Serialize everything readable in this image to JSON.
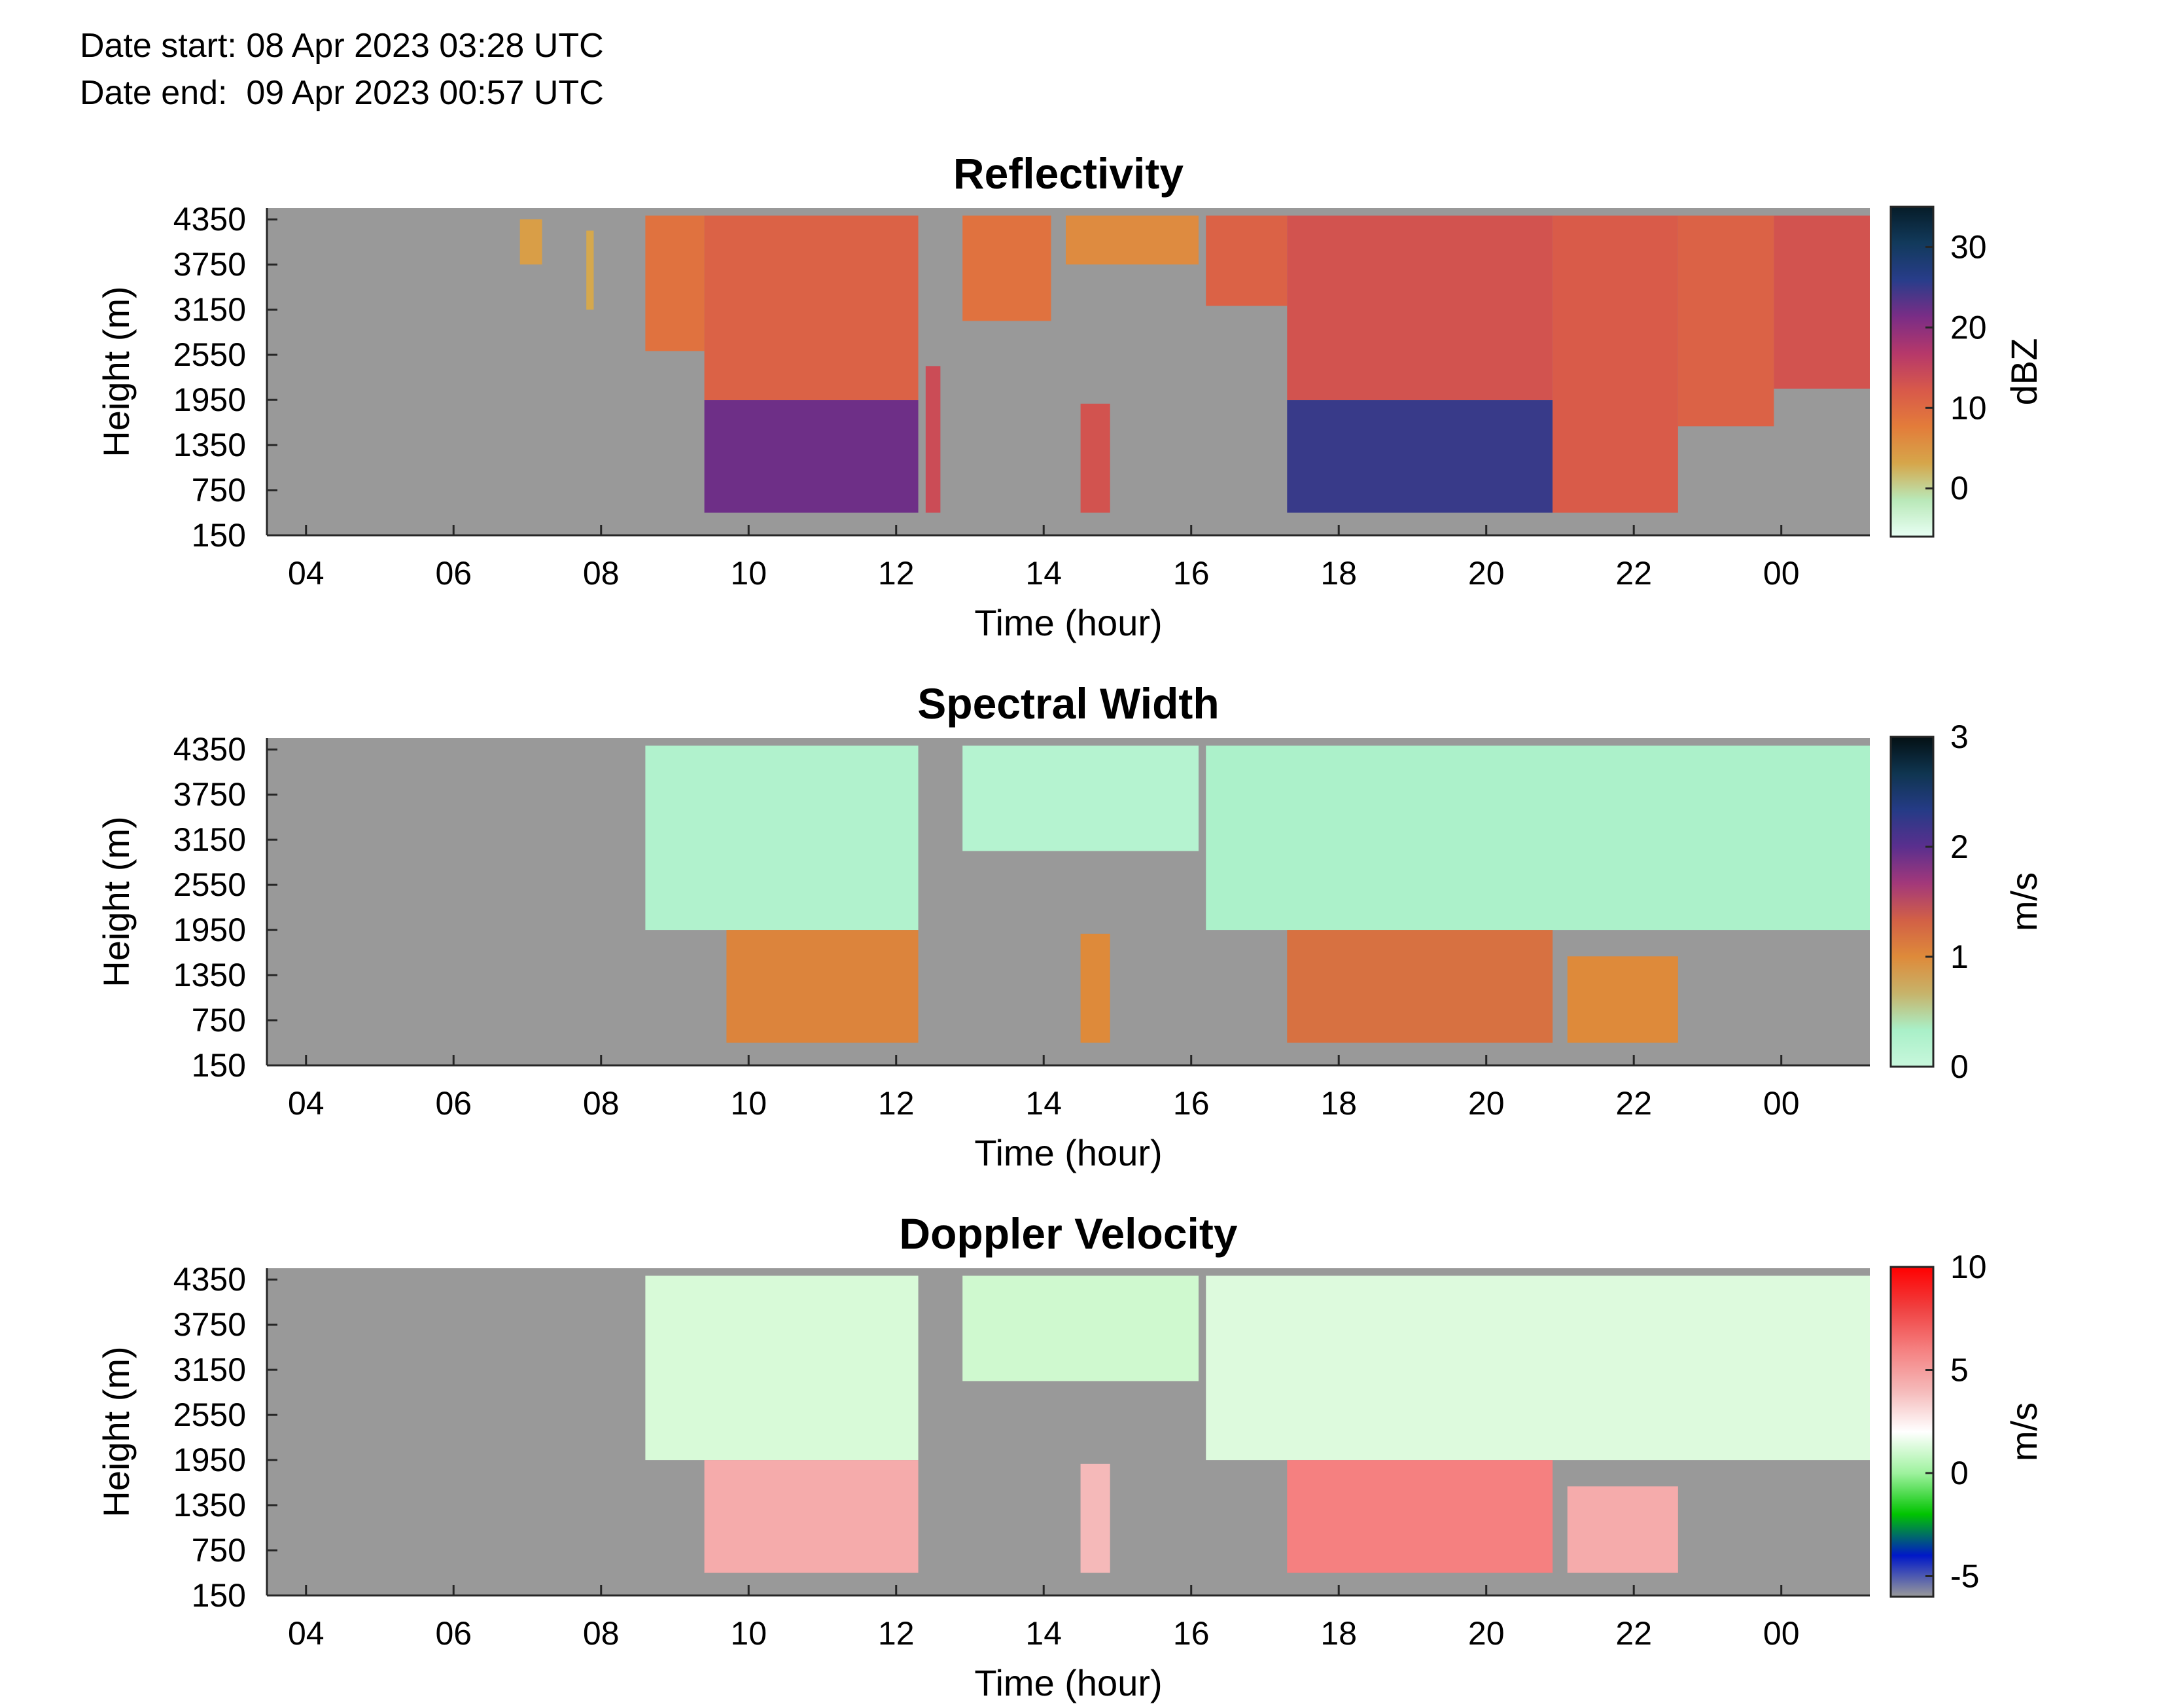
{
  "header": {
    "date_start": "Date start: 08 Apr 2023 03:28 UTC",
    "date_end": "Date end:  09 Apr 2023 00:57 UTC"
  },
  "colors": {
    "missing": "#999999",
    "axis": "#262626",
    "reflectivity_scale": [
      "#e8fff4",
      "#b9e8b8",
      "#d6a64a",
      "#e37c3a",
      "#d8594a",
      "#b6386a",
      "#7a2d86",
      "#283d8a",
      "#123a5c",
      "#061c28"
    ],
    "spectral_width_scale": [
      "#c8f7dc",
      "#a9f0c8",
      "#c7b36a",
      "#de8a3a",
      "#d26046",
      "#a3387a",
      "#5a2f8e",
      "#253b86",
      "#0f3550",
      "#041014"
    ],
    "doppler_scale": [
      "#9a9a9a",
      "#0018c8",
      "#00c400",
      "#9ef29e",
      "#ffffff",
      "#f5b9b9",
      "#f58080",
      "#f04040",
      "#ff0000"
    ]
  },
  "chart_data": [
    {
      "type": "heatmap",
      "title": "Reflectivity",
      "xlabel": "Time (hour)",
      "ylabel": "Height (m)",
      "x_ticks": [
        "04",
        "06",
        "08",
        "10",
        "12",
        "14",
        "16",
        "18",
        "20",
        "22",
        "00"
      ],
      "y_ticks": [
        "150",
        "750",
        "1350",
        "1950",
        "2550",
        "3150",
        "3750",
        "4350"
      ],
      "xlim_hours_since_0300": [
        0.47,
        22.2
      ],
      "ylim_m": [
        150,
        4500
      ],
      "colorbar": {
        "label": "dBZ",
        "ticks": [
          "0",
          "10",
          "20",
          "30"
        ],
        "range": [
          -6,
          35
        ]
      },
      "missing_value_color": "#999999",
      "echo_regions": [
        {
          "start_h": 3.9,
          "end_h": 4.2,
          "top_m": 4350,
          "bottom_m": 3750,
          "value": 4
        },
        {
          "start_h": 4.8,
          "end_h": 4.9,
          "top_m": 4200,
          "bottom_m": 3150,
          "value": 3
        },
        {
          "start_h": 5.6,
          "end_h": 6.4,
          "top_m": 4400,
          "bottom_m": 2600,
          "value": 9
        },
        {
          "start_h": 6.4,
          "end_h": 9.3,
          "top_m": 4400,
          "bottom_m": 1950,
          "value": 11
        },
        {
          "start_h": 6.4,
          "end_h": 9.3,
          "top_m": 1950,
          "bottom_m": 450,
          "value": 22
        },
        {
          "start_h": 9.4,
          "end_h": 9.6,
          "top_m": 2400,
          "bottom_m": 450,
          "value": 14
        },
        {
          "start_h": 9.9,
          "end_h": 11.1,
          "top_m": 4400,
          "bottom_m": 3000,
          "value": 9
        },
        {
          "start_h": 11.5,
          "end_h": 11.9,
          "top_m": 1900,
          "bottom_m": 450,
          "value": 13
        },
        {
          "start_h": 11.3,
          "end_h": 13.1,
          "top_m": 4400,
          "bottom_m": 3750,
          "value": 6
        },
        {
          "start_h": 13.2,
          "end_h": 14.3,
          "top_m": 4400,
          "bottom_m": 3200,
          "value": 11
        },
        {
          "start_h": 14.3,
          "end_h": 17.9,
          "top_m": 4400,
          "bottom_m": 1950,
          "value": 13
        },
        {
          "start_h": 14.3,
          "end_h": 17.9,
          "top_m": 1950,
          "bottom_m": 450,
          "value": 25
        },
        {
          "start_h": 17.9,
          "end_h": 19.6,
          "top_m": 4400,
          "bottom_m": 450,
          "value": 12
        },
        {
          "start_h": 19.6,
          "end_h": 20.9,
          "top_m": 4400,
          "bottom_m": 1600,
          "value": 11
        },
        {
          "start_h": 20.9,
          "end_h": 24.4,
          "top_m": 4400,
          "bottom_m": 2100,
          "value": 13
        }
      ]
    },
    {
      "type": "heatmap",
      "title": "Spectral Width",
      "xlabel": "Time (hour)",
      "ylabel": "Height (m)",
      "x_ticks": [
        "04",
        "06",
        "08",
        "10",
        "12",
        "14",
        "16",
        "18",
        "20",
        "22",
        "00"
      ],
      "y_ticks": [
        "150",
        "750",
        "1350",
        "1950",
        "2550",
        "3150",
        "3750",
        "4350"
      ],
      "xlim_hours_since_0300": [
        0.47,
        22.2
      ],
      "ylim_m": [
        150,
        4500
      ],
      "colorbar": {
        "label": "m/s",
        "ticks": [
          "0",
          "1",
          "2",
          "3"
        ],
        "range": [
          0,
          3
        ]
      },
      "missing_value_color": "#999999",
      "echo_regions": [
        {
          "start_h": 5.6,
          "end_h": 9.3,
          "top_m": 4400,
          "bottom_m": 1950,
          "value": 0.25
        },
        {
          "start_h": 6.7,
          "end_h": 9.3,
          "top_m": 1950,
          "bottom_m": 450,
          "value": 1.05
        },
        {
          "start_h": 9.9,
          "end_h": 13.1,
          "top_m": 4400,
          "bottom_m": 3000,
          "value": 0.2
        },
        {
          "start_h": 11.5,
          "end_h": 11.9,
          "top_m": 1900,
          "bottom_m": 450,
          "value": 1.0
        },
        {
          "start_h": 13.2,
          "end_h": 24.4,
          "top_m": 4400,
          "bottom_m": 1950,
          "value": 0.3
        },
        {
          "start_h": 14.3,
          "end_h": 17.9,
          "top_m": 1950,
          "bottom_m": 450,
          "value": 1.2
        },
        {
          "start_h": 18.1,
          "end_h": 19.6,
          "top_m": 1600,
          "bottom_m": 450,
          "value": 1.0
        }
      ]
    },
    {
      "type": "heatmap",
      "title": "Doppler Velocity",
      "xlabel": "Time (hour)",
      "ylabel": "Height (m)",
      "x_ticks": [
        "04",
        "06",
        "08",
        "10",
        "12",
        "14",
        "16",
        "18",
        "20",
        "22",
        "00"
      ],
      "y_ticks": [
        "150",
        "750",
        "1350",
        "1950",
        "2550",
        "3150",
        "3750",
        "4350"
      ],
      "xlim_hours_since_0300": [
        0.47,
        22.2
      ],
      "ylim_m": [
        150,
        4500
      ],
      "colorbar": {
        "label": "m/s",
        "ticks": [
          "-5",
          "0",
          "5",
          "10"
        ],
        "range": [
          -6,
          10
        ]
      },
      "missing_value_color": "#999999",
      "echo_regions": [
        {
          "start_h": 5.6,
          "end_h": 9.3,
          "top_m": 4400,
          "bottom_m": 1950,
          "value": 1.2
        },
        {
          "start_h": 6.4,
          "end_h": 9.3,
          "top_m": 1950,
          "bottom_m": 450,
          "value": 4.5
        },
        {
          "start_h": 9.9,
          "end_h": 13.1,
          "top_m": 4400,
          "bottom_m": 3000,
          "value": 1.0
        },
        {
          "start_h": 11.5,
          "end_h": 11.9,
          "top_m": 1900,
          "bottom_m": 450,
          "value": 4.0
        },
        {
          "start_h": 13.2,
          "end_h": 24.4,
          "top_m": 4400,
          "bottom_m": 1950,
          "value": 1.3
        },
        {
          "start_h": 14.3,
          "end_h": 17.9,
          "top_m": 1950,
          "bottom_m": 450,
          "value": 6.0
        },
        {
          "start_h": 18.1,
          "end_h": 19.6,
          "top_m": 1600,
          "bottom_m": 450,
          "value": 4.5
        }
      ]
    }
  ]
}
